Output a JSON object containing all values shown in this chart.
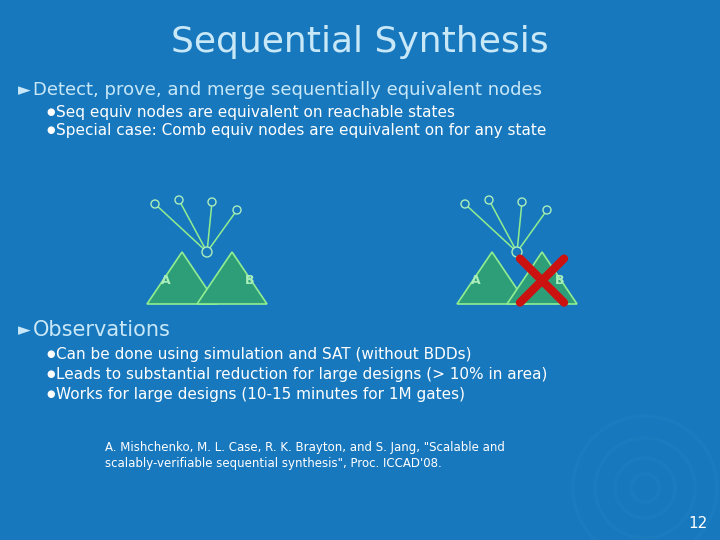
{
  "title": "Sequential Synthesis",
  "title_color": "#C8E8F8",
  "title_fontsize": 26,
  "bg_color": "#1878BE",
  "bullet1_header": "Detect, prove, and merge sequentially equivalent nodes",
  "bullet1_sub1": "Seq equiv nodes are equivalent on reachable states",
  "bullet1_sub2": "Special case: Comb equiv nodes are equivalent on for any state",
  "bullet2_header": "Observations",
  "bullet2_sub1": "Can be done using simulation and SAT (without BDDs)",
  "bullet2_sub2": "Leads to substantial reduction for large designs (> 10% in area)",
  "bullet2_sub3": "Works for large designs (10-15 minutes for 1M gates)",
  "ref_line1": "A. Mishchenko, M. L. Case, R. K. Brayton, and S. Jang, \"Scalable and",
  "ref_line2": "scalably-verifiable sequential synthesis\", Proc. ICCAD'08.",
  "page_num": "12",
  "text_color": "#FFFFFF",
  "header_color": "#C8E8F8",
  "green_tri_color": "#2E9E78",
  "tri_border_color": "#90EE90",
  "node_color": "#AAEEBB",
  "node_border": "#90EE90",
  "cross_color": "#CC1111",
  "line_color": "#90EE90",
  "arrow_color": "#90EE90"
}
